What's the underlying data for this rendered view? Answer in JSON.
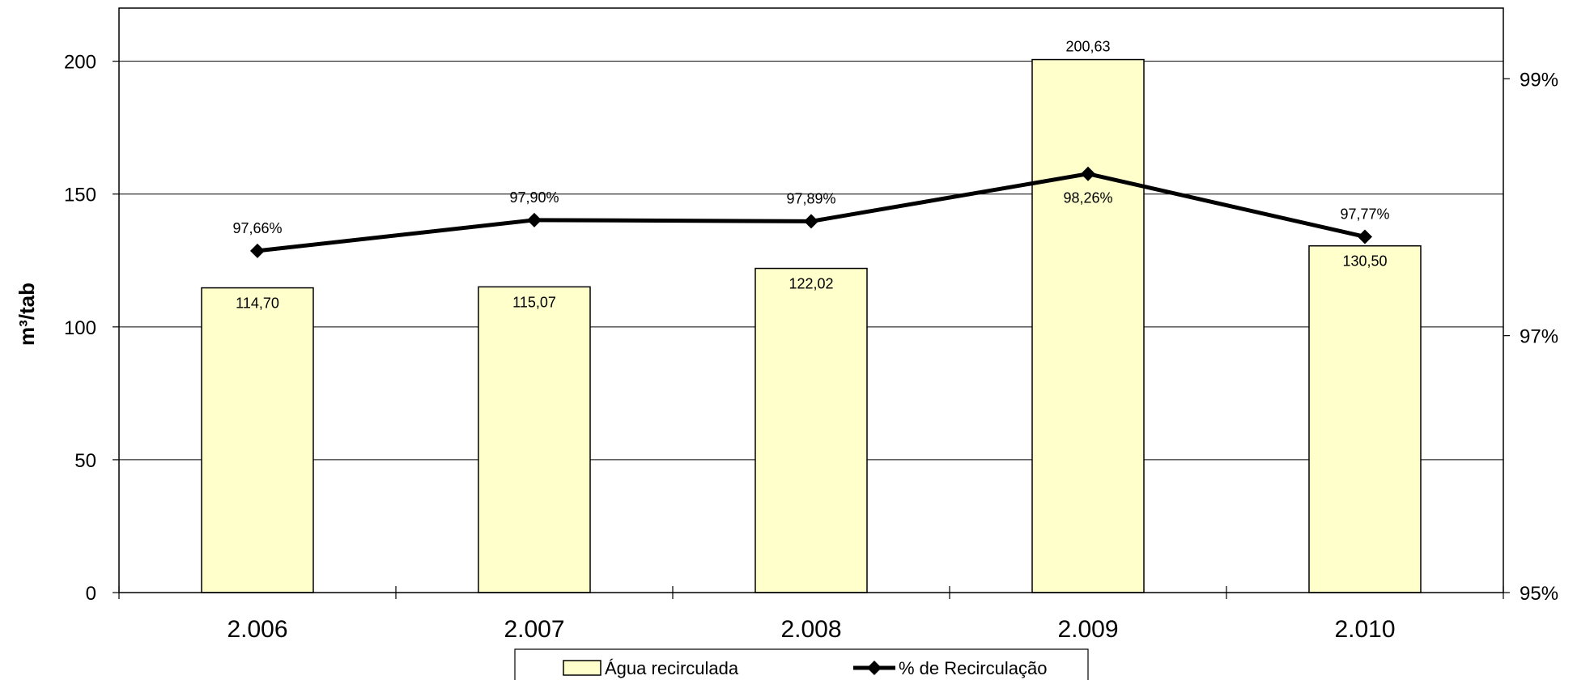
{
  "chart_data": {
    "type": "bar",
    "categories": [
      "2.006",
      "2.007",
      "2.008",
      "2.009",
      "2.010"
    ],
    "series": [
      {
        "name": "Água recirculada",
        "type": "bar",
        "axis": "left",
        "values": [
          114.7,
          115.07,
          122.02,
          200.63,
          130.5
        ],
        "labels": [
          "114,70",
          "115,07",
          "122,02",
          "200,63",
          "130,50"
        ],
        "color": "#FFFFCC"
      },
      {
        "name": "% de Recirculação",
        "type": "line",
        "axis": "right",
        "values": [
          97.66,
          97.9,
          97.89,
          98.26,
          97.77
        ],
        "labels": [
          "97,66%",
          "97,90%",
          "97,89%",
          "98,26%",
          "97,77%"
        ],
        "color": "#000000"
      }
    ],
    "ylabel": "m³/tab",
    "ylim": [
      0,
      220
    ],
    "yticks": [
      {
        "value": 0,
        "label": "0"
      },
      {
        "value": 50,
        "label": "50"
      },
      {
        "value": 100,
        "label": "100"
      },
      {
        "value": 150,
        "label": "150"
      },
      {
        "value": 200,
        "label": "200"
      }
    ],
    "y2lim": [
      95,
      99.55
    ],
    "y2ticks": [
      {
        "value": 95,
        "label": "95%"
      },
      {
        "value": 97,
        "label": "97%"
      },
      {
        "value": 99,
        "label": "99%"
      }
    ],
    "grid": true,
    "legend": "bottom"
  }
}
